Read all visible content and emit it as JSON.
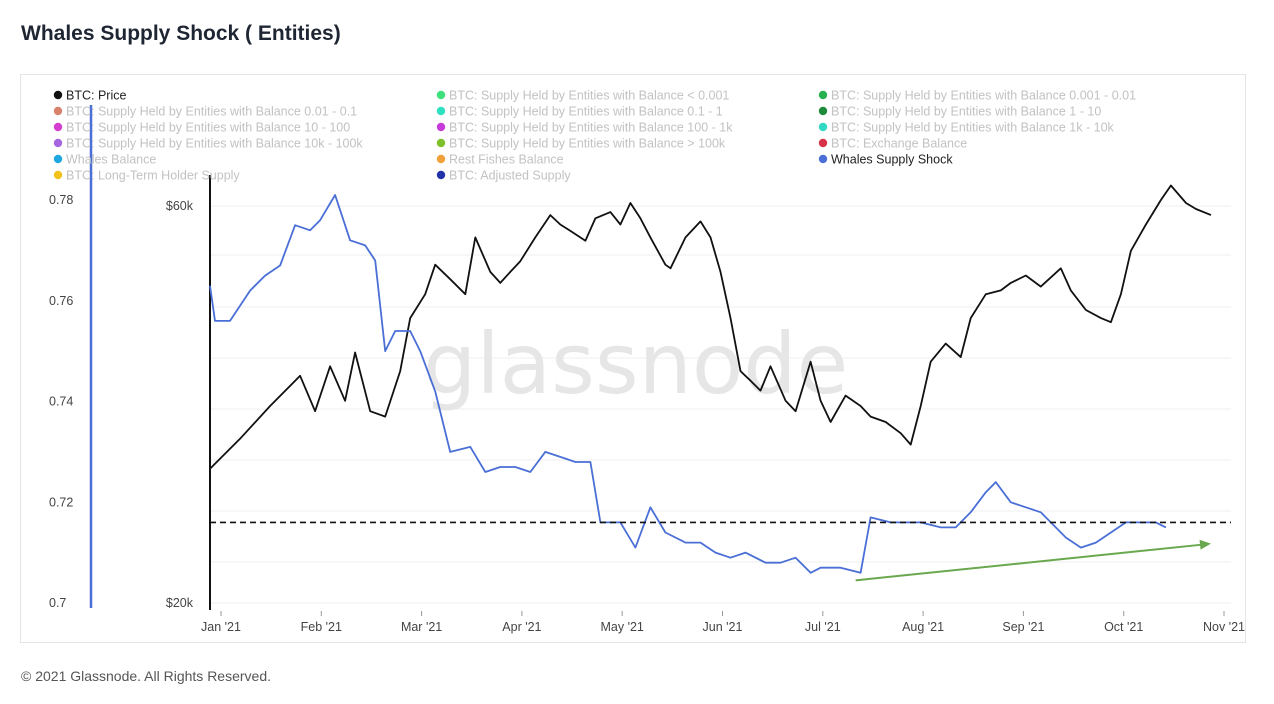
{
  "title": "Whales Supply Shock ( Entities)",
  "footer": "© 2021 Glassnode. All Rights Reserved.",
  "watermark": "glassnode",
  "chart_data": {
    "type": "line",
    "title": "Whales Supply Shock ( Entities)",
    "x_ticks": [
      "Jan '21",
      "Feb '21",
      "Mar '21",
      "Apr '21",
      "May '21",
      "Jun '21",
      "Jul '21",
      "Aug '21",
      "Sep '21",
      "Oct '21",
      "Nov '21"
    ],
    "left_axis": {
      "ticks": [
        "0.78",
        "0.76",
        "0.74",
        "0.72",
        "0.7"
      ],
      "range": [
        0.7,
        0.781
      ]
    },
    "right_axis": {
      "ticks": [
        "$60k",
        "$20k"
      ],
      "scale": "log",
      "range": [
        20000,
        60000
      ]
    },
    "legend": [
      {
        "label": "BTC: Price",
        "color": "#111111",
        "active": true
      },
      {
        "label": "BTC: Supply Held by Entities with Balance < 0.001",
        "color": "#3ee07d",
        "active": false
      },
      {
        "label": "BTC: Supply Held by Entities with Balance 0.001 - 0.01",
        "color": "#27b14f",
        "active": false
      },
      {
        "label": "BTC: Supply Held by Entities with Balance 0.01 - 0.1",
        "color": "#d9826b",
        "active": false
      },
      {
        "label": "BTC: Supply Held by Entities with Balance 0.1 - 1",
        "color": "#2de0c0",
        "active": false
      },
      {
        "label": "BTC: Supply Held by Entities with Balance 1 - 10",
        "color": "#1f8a3c",
        "active": false
      },
      {
        "label": "BTC: Supply Held by Entities with Balance 10 - 100",
        "color": "#d43fd1",
        "active": false
      },
      {
        "label": "BTC: Supply Held by Entities with Balance 100 - 1k",
        "color": "#c73bd9",
        "active": false
      },
      {
        "label": "BTC: Supply Held by Entities with Balance 1k - 10k",
        "color": "#31d9c2",
        "active": false
      },
      {
        "label": "BTC: Supply Held by Entities with Balance 10k - 100k",
        "color": "#a666e0",
        "active": false
      },
      {
        "label": "BTC: Supply Held by Entities with Balance > 100k",
        "color": "#7ec02a",
        "active": false
      },
      {
        "label": "BTC: Exchange Balance",
        "color": "#d8334a",
        "active": false
      },
      {
        "label": "Whales Balance",
        "color": "#1fa8e0",
        "active": false
      },
      {
        "label": "Rest Fishes Balance",
        "color": "#f2a03a",
        "active": false
      },
      {
        "label": "Whales Supply Shock",
        "color": "#4a6fd6",
        "active": true
      },
      {
        "label": "BTC: Long-Term Holder Supply",
        "color": "#f2c21a",
        "active": false
      },
      {
        "label": "BTC: Adjusted Supply",
        "color": "#2332a8",
        "active": false
      }
    ],
    "series": [
      {
        "name": "BTC: Price",
        "axis": "right",
        "color": "#111111",
        "points": [
          [
            0,
            29000
          ],
          [
            0.3,
            31500
          ],
          [
            0.6,
            34500
          ],
          [
            0.9,
            37500
          ],
          [
            1.05,
            34000
          ],
          [
            1.2,
            38500
          ],
          [
            1.35,
            35000
          ],
          [
            1.45,
            40000
          ],
          [
            1.6,
            34000
          ],
          [
            1.75,
            33500
          ],
          [
            1.9,
            38000
          ],
          [
            2.0,
            44000
          ],
          [
            2.15,
            47000
          ],
          [
            2.25,
            51000
          ],
          [
            2.4,
            49000
          ],
          [
            2.55,
            47000
          ],
          [
            2.65,
            55000
          ],
          [
            2.8,
            50000
          ],
          [
            2.9,
            48500
          ],
          [
            3.0,
            50000
          ],
          [
            3.1,
            51500
          ],
          [
            3.25,
            55000
          ],
          [
            3.4,
            58500
          ],
          [
            3.5,
            57000
          ],
          [
            3.6,
            56000
          ],
          [
            3.75,
            54500
          ],
          [
            3.85,
            58000
          ],
          [
            4.0,
            59000
          ],
          [
            4.1,
            57000
          ],
          [
            4.2,
            60500
          ],
          [
            4.3,
            58000
          ],
          [
            4.4,
            55000
          ],
          [
            4.55,
            51000
          ],
          [
            4.6,
            50500
          ],
          [
            4.75,
            55000
          ],
          [
            4.9,
            57500
          ],
          [
            5.0,
            55000
          ],
          [
            5.1,
            50000
          ],
          [
            5.2,
            44000
          ],
          [
            5.3,
            38000
          ],
          [
            5.4,
            37000
          ],
          [
            5.5,
            36000
          ],
          [
            5.6,
            38500
          ],
          [
            5.75,
            35000
          ],
          [
            5.85,
            34000
          ],
          [
            6.0,
            39000
          ],
          [
            6.1,
            35000
          ],
          [
            6.2,
            33000
          ],
          [
            6.35,
            35500
          ],
          [
            6.5,
            34500
          ],
          [
            6.6,
            33500
          ],
          [
            6.75,
            33000
          ],
          [
            6.9,
            32000
          ],
          [
            7.0,
            31000
          ],
          [
            7.1,
            34500
          ],
          [
            7.2,
            39000
          ],
          [
            7.35,
            41000
          ],
          [
            7.5,
            39500
          ],
          [
            7.6,
            44000
          ],
          [
            7.75,
            47000
          ],
          [
            7.9,
            47500
          ],
          [
            8.0,
            48500
          ],
          [
            8.15,
            49500
          ],
          [
            8.3,
            48000
          ],
          [
            8.5,
            50500
          ],
          [
            8.6,
            47500
          ],
          [
            8.75,
            45000
          ],
          [
            8.9,
            44000
          ],
          [
            9.0,
            43500
          ],
          [
            9.1,
            47000
          ],
          [
            9.2,
            53000
          ],
          [
            9.35,
            57000
          ],
          [
            9.5,
            61000
          ],
          [
            9.6,
            63500
          ],
          [
            9.75,
            60500
          ],
          [
            9.85,
            59500
          ],
          [
            10.0,
            58500
          ]
        ]
      },
      {
        "name": "Whales Supply Shock",
        "axis": "left",
        "color": "#4a6fd6",
        "points": [
          [
            0,
            0.763
          ],
          [
            0.05,
            0.756
          ],
          [
            0.2,
            0.756
          ],
          [
            0.4,
            0.762
          ],
          [
            0.55,
            0.765
          ],
          [
            0.7,
            0.767
          ],
          [
            0.85,
            0.775
          ],
          [
            1.0,
            0.774
          ],
          [
            1.1,
            0.776
          ],
          [
            1.25,
            0.781
          ],
          [
            1.4,
            0.772
          ],
          [
            1.55,
            0.771
          ],
          [
            1.65,
            0.768
          ],
          [
            1.75,
            0.75
          ],
          [
            1.85,
            0.754
          ],
          [
            2.0,
            0.754
          ],
          [
            2.1,
            0.75
          ],
          [
            2.25,
            0.742
          ],
          [
            2.4,
            0.73
          ],
          [
            2.6,
            0.731
          ],
          [
            2.75,
            0.726
          ],
          [
            2.9,
            0.727
          ],
          [
            3.05,
            0.727
          ],
          [
            3.2,
            0.726
          ],
          [
            3.35,
            0.73
          ],
          [
            3.5,
            0.729
          ],
          [
            3.65,
            0.728
          ],
          [
            3.8,
            0.728
          ],
          [
            3.9,
            0.716
          ],
          [
            4.1,
            0.716
          ],
          [
            4.25,
            0.711
          ],
          [
            4.4,
            0.719
          ],
          [
            4.55,
            0.714
          ],
          [
            4.75,
            0.712
          ],
          [
            4.9,
            0.712
          ],
          [
            5.05,
            0.71
          ],
          [
            5.2,
            0.709
          ],
          [
            5.35,
            0.71
          ],
          [
            5.55,
            0.708
          ],
          [
            5.7,
            0.708
          ],
          [
            5.85,
            0.709
          ],
          [
            6.0,
            0.706
          ],
          [
            6.1,
            0.707
          ],
          [
            6.3,
            0.707
          ],
          [
            6.5,
            0.706
          ],
          [
            6.6,
            0.717
          ],
          [
            6.8,
            0.716
          ],
          [
            6.95,
            0.716
          ],
          [
            7.1,
            0.716
          ],
          [
            7.3,
            0.715
          ],
          [
            7.45,
            0.715
          ],
          [
            7.6,
            0.718
          ],
          [
            7.75,
            0.722
          ],
          [
            7.85,
            0.724
          ],
          [
            8.0,
            0.72
          ],
          [
            8.15,
            0.719
          ],
          [
            8.3,
            0.718
          ],
          [
            8.4,
            0.716
          ],
          [
            8.55,
            0.713
          ],
          [
            8.7,
            0.711
          ],
          [
            8.85,
            0.712
          ],
          [
            9.0,
            0.714
          ],
          [
            9.15,
            0.716
          ],
          [
            9.3,
            0.716
          ],
          [
            9.45,
            0.716
          ],
          [
            9.55,
            0.715
          ]
        ]
      }
    ],
    "annotations": [
      {
        "type": "dashed-horizontal-line",
        "axis": "left",
        "value": 0.716,
        "color": "#111111"
      },
      {
        "type": "arrow",
        "axis": "left",
        "from": [
          6.45,
          0.7045
        ],
        "to": [
          10.0,
          0.7118
        ],
        "color": "#6aa84f"
      }
    ]
  }
}
